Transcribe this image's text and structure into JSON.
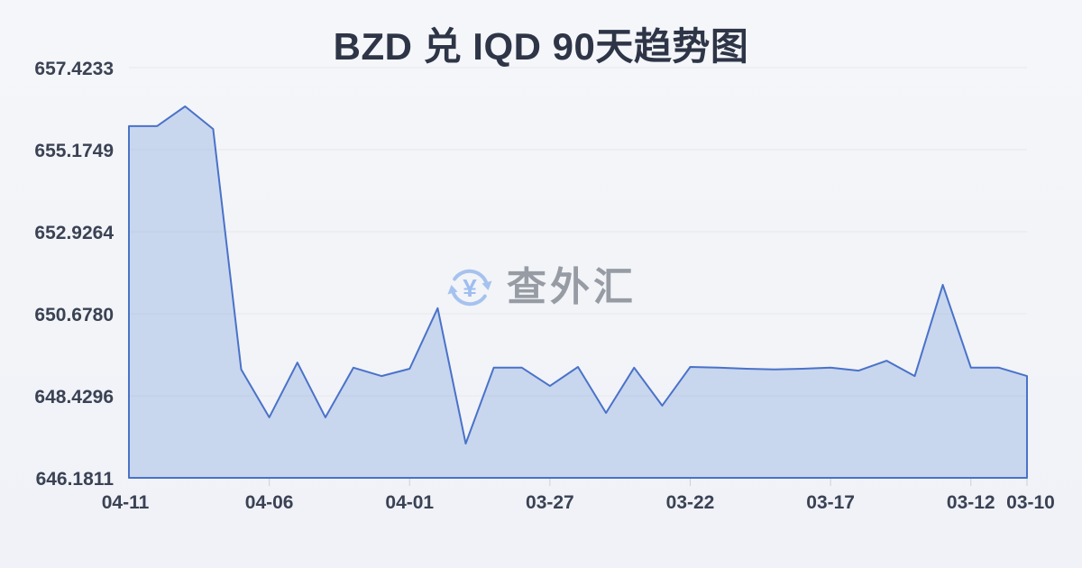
{
  "header": {
    "title": "BZD 兑 IQD 90天趋势图"
  },
  "watermark": {
    "text": "查外汇",
    "icon": "yen-refresh-icon",
    "icon_color": "#a6c2ee",
    "text_color": "#979ca4"
  },
  "chart_data": {
    "type": "area",
    "title": "BZD 兑 IQD 90天趋势图",
    "xlabel": "",
    "ylabel": "",
    "x_reversed_time": true,
    "x": [
      "04-11",
      "04-10",
      "04-09",
      "04-08",
      "04-07",
      "04-06",
      "04-05",
      "04-04",
      "04-03",
      "04-02",
      "04-01",
      "03-31",
      "03-30",
      "03-29",
      "03-28",
      "03-27",
      "03-26",
      "03-25",
      "03-24",
      "03-23",
      "03-22",
      "03-21",
      "03-20",
      "03-19",
      "03-18",
      "03-17",
      "03-16",
      "03-15",
      "03-14",
      "03-13",
      "03-12",
      "03-11",
      "03-10"
    ],
    "values": [
      655.82,
      655.82,
      656.36,
      655.74,
      649.15,
      647.84,
      649.34,
      647.84,
      649.2,
      648.97,
      649.17,
      650.83,
      647.12,
      649.2,
      649.2,
      648.7,
      649.22,
      647.96,
      649.2,
      648.16,
      649.22,
      649.2,
      649.17,
      649.15,
      649.17,
      649.2,
      649.12,
      649.39,
      648.97,
      651.47,
      649.2,
      649.2,
      648.97
    ],
    "ylim": [
      646.1811,
      657.4233
    ],
    "y_ticks": [
      657.4233,
      655.1749,
      652.9264,
      650.678,
      648.4296,
      646.1811
    ],
    "y_tick_labels": [
      "657.4233",
      "655.1749",
      "652.9264",
      "650.6780",
      "648.4296",
      "646.1811"
    ],
    "x_tick_indices": [
      0,
      5,
      10,
      15,
      20,
      25,
      30,
      32
    ],
    "x_tick_labels": [
      "04-11",
      "04-06",
      "04-01",
      "03-27",
      "03-22",
      "03-17",
      "03-12",
      "03-10"
    ],
    "grid": true,
    "legend": "none",
    "line_color": "#4a72c8",
    "fill_color": "rgba(122,160,220,0.35)",
    "grid_color": "#e6e8ec",
    "tick_color": "#ccd0d8"
  }
}
